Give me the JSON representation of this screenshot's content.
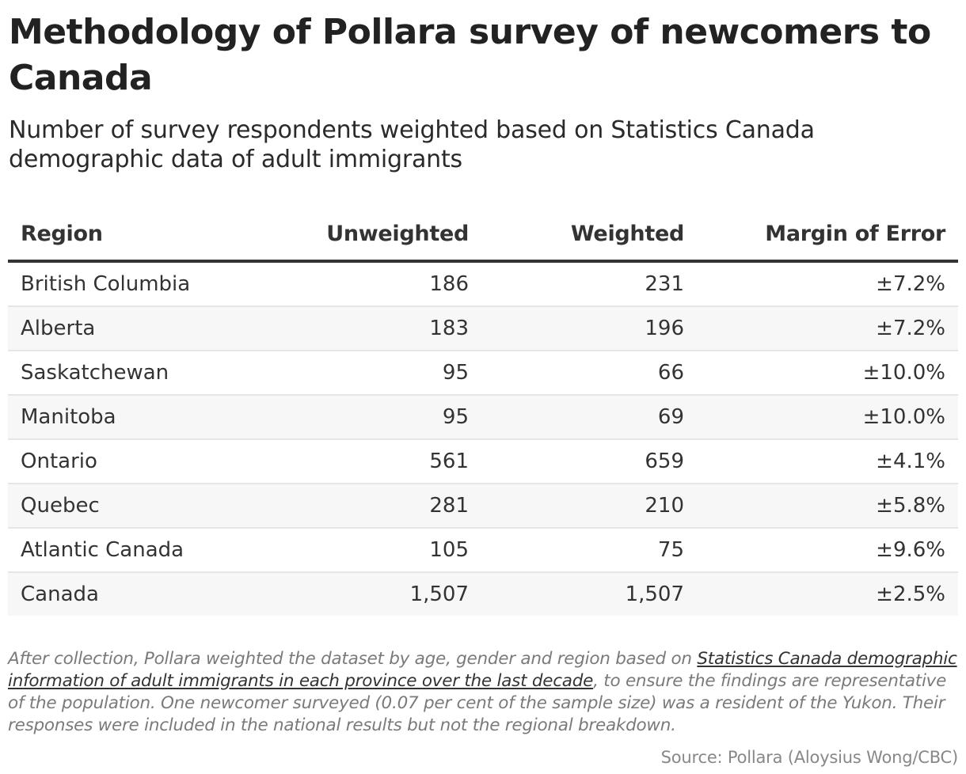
{
  "header": {
    "title": "Methodology of Pollara survey of newcomers to Canada",
    "subtitle": "Number of survey respondents weighted based on Statistics Canada demographic data of adult immigrants"
  },
  "table": {
    "columns": [
      "Region",
      "Unweighted",
      "Weighted",
      "Margin of Error"
    ],
    "rows": [
      {
        "region": "British Columbia",
        "unweighted": "186",
        "weighted": "231",
        "moe": "±7.2%"
      },
      {
        "region": "Alberta",
        "unweighted": "183",
        "weighted": "196",
        "moe": "±7.2%"
      },
      {
        "region": "Saskatchewan",
        "unweighted": "95",
        "weighted": "66",
        "moe": "±10.0%"
      },
      {
        "region": "Manitoba",
        "unweighted": "95",
        "weighted": "69",
        "moe": "±10.0%"
      },
      {
        "region": "Ontario",
        "unweighted": "561",
        "weighted": "659",
        "moe": "±4.1%"
      },
      {
        "region": "Quebec",
        "unweighted": "281",
        "weighted": "210",
        "moe": "±5.8%"
      },
      {
        "region": "Atlantic Canada",
        "unweighted": "105",
        "weighted": "75",
        "moe": "±9.6%"
      },
      {
        "region": "Canada",
        "unweighted": "1,507",
        "weighted": "1,507",
        "moe": "±2.5%"
      }
    ]
  },
  "notes": {
    "before_link": "After collection, Pollara weighted the dataset by age, gender and region based on ",
    "link_text": "Statistics Canada demographic information of adult immigrants in each province over the last decade",
    "after_link": ", to ensure the findings are representative of the population. One newcomer surveyed (0.07 per cent of the sample size) was a resident of the Yukon. Their responses were included in the national results but not the regional breakdown."
  },
  "footer": {
    "source": "Source: Pollara (Aloysius Wong/CBC)"
  },
  "colors": {
    "text": "#333333",
    "header_rule": "#333333",
    "row_alt_bg": "#f7f7f7",
    "row_divider": "#e6e6e6",
    "notes_text": "#7a7a7a"
  },
  "chart_data": {
    "type": "table",
    "title": "Methodology of Pollara survey of newcomers to Canada",
    "subtitle": "Number of survey respondents weighted based on Statistics Canada demographic data of adult immigrants",
    "columns": [
      "Region",
      "Unweighted",
      "Weighted",
      "Margin of Error"
    ],
    "categories": [
      "British Columbia",
      "Alberta",
      "Saskatchewan",
      "Manitoba",
      "Ontario",
      "Quebec",
      "Atlantic Canada",
      "Canada"
    ],
    "series": [
      {
        "name": "Unweighted",
        "values": [
          186,
          183,
          95,
          95,
          561,
          281,
          105,
          1507
        ]
      },
      {
        "name": "Weighted",
        "values": [
          231,
          196,
          66,
          69,
          659,
          210,
          75,
          1507
        ]
      },
      {
        "name": "Margin of Error (±%)",
        "values": [
          7.2,
          7.2,
          10.0,
          10.0,
          4.1,
          5.8,
          9.6,
          2.5
        ]
      }
    ],
    "source": "Source: Pollara (Aloysius Wong/CBC)"
  }
}
